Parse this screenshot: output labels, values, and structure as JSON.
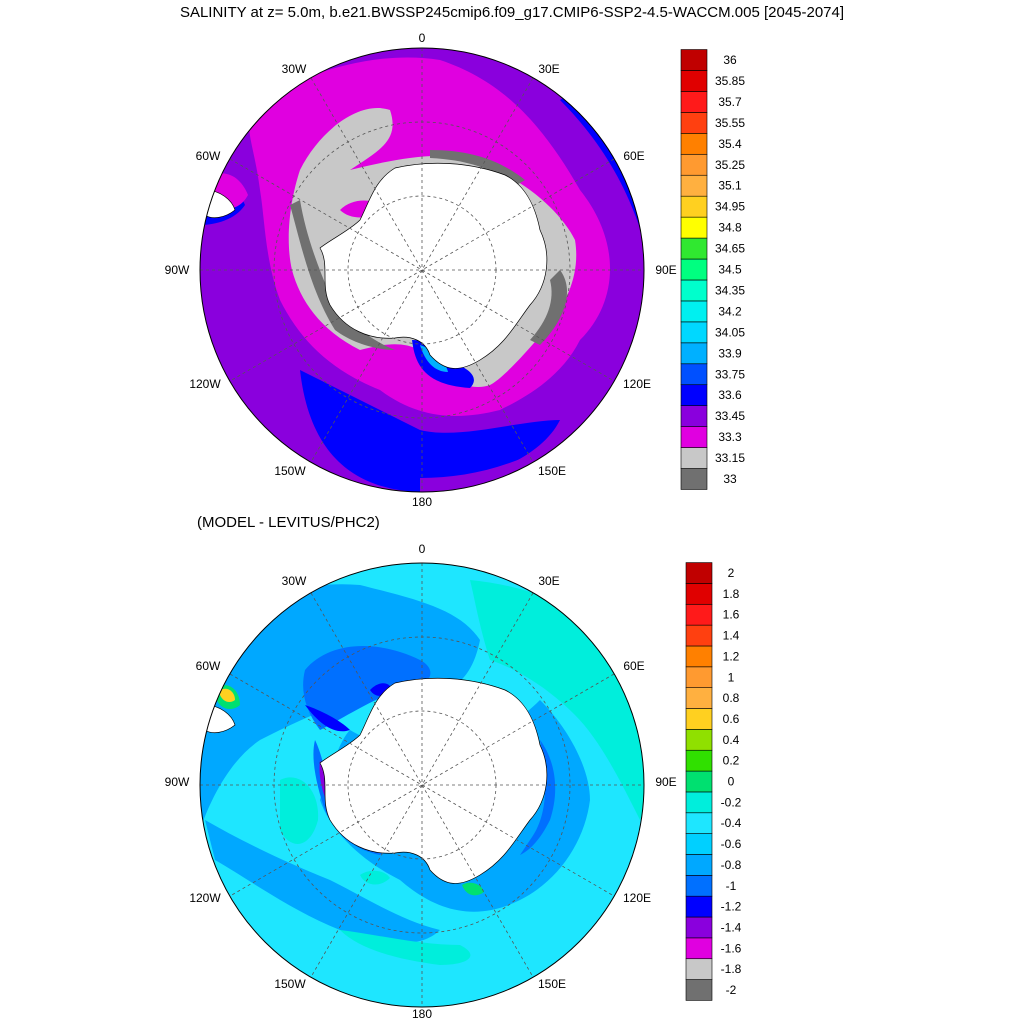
{
  "header": {
    "title": "SALINITY at z=   5.0m, b.e21.BWSSP245cmip6.f09_g17.CMIP6-SSP2-4.5-WACCM.005 [2045-2074]"
  },
  "lower_panel": {
    "title": "(MODEL - LEVITUS/PHC2)"
  },
  "map_labels": {
    "lon_0": "0",
    "lon_30w": "30W",
    "lon_30e": "30E",
    "lon_60w": "60W",
    "lon_60e": "60E",
    "lon_90w": "90W",
    "lon_90e": "90E",
    "lon_120w": "120W",
    "lon_120e": "120E",
    "lon_150w": "150W",
    "lon_150e": "150E",
    "lon_180": "180"
  },
  "colors": {
    "land": "#ffffff",
    "upper_bins": [
      "#707070",
      "#c8c8c8",
      "#e000e0",
      "#8a00dd",
      "#0000ff",
      "#0050ff",
      "#00b0ff",
      "#00d8ff",
      "#00f0f0",
      "#00ffcc",
      "#00ff80",
      "#30e830",
      "#ffff00",
      "#ffd020",
      "#ffb040",
      "#ff9a30",
      "#ff8000",
      "#ff4010",
      "#ff1a1a",
      "#e00000",
      "#c00000"
    ],
    "lower_bins": [
      "#707070",
      "#c8c8c8",
      "#e000e0",
      "#8a00dd",
      "#0000ff",
      "#0070ff",
      "#00a8ff",
      "#00d0ff",
      "#1ee6ff",
      "#00eedc",
      "#00e070",
      "#30e000",
      "#90e000",
      "#ffd020",
      "#ffb040",
      "#ff9a30",
      "#ff8000",
      "#ff4010",
      "#ff1a1a",
      "#e00000",
      "#c00000"
    ]
  },
  "colorbars": {
    "upper": [
      "36",
      "35.85",
      "35.7",
      "35.55",
      "35.4",
      "35.25",
      "35.1",
      "34.95",
      "34.8",
      "34.65",
      "34.5",
      "34.35",
      "34.2",
      "34.05",
      "33.9",
      "33.75",
      "33.6",
      "33.45",
      "33.3",
      "33.15",
      "33"
    ],
    "lower": [
      "2",
      "1.8",
      "1.6",
      "1.4",
      "1.2",
      "1",
      "0.8",
      "0.6",
      "0.4",
      "0.2",
      "0",
      "-0.2",
      "-0.4",
      "-0.6",
      "-0.8",
      "-1",
      "-1.2",
      "-1.4",
      "-1.6",
      "-1.8",
      "-2"
    ]
  }
}
